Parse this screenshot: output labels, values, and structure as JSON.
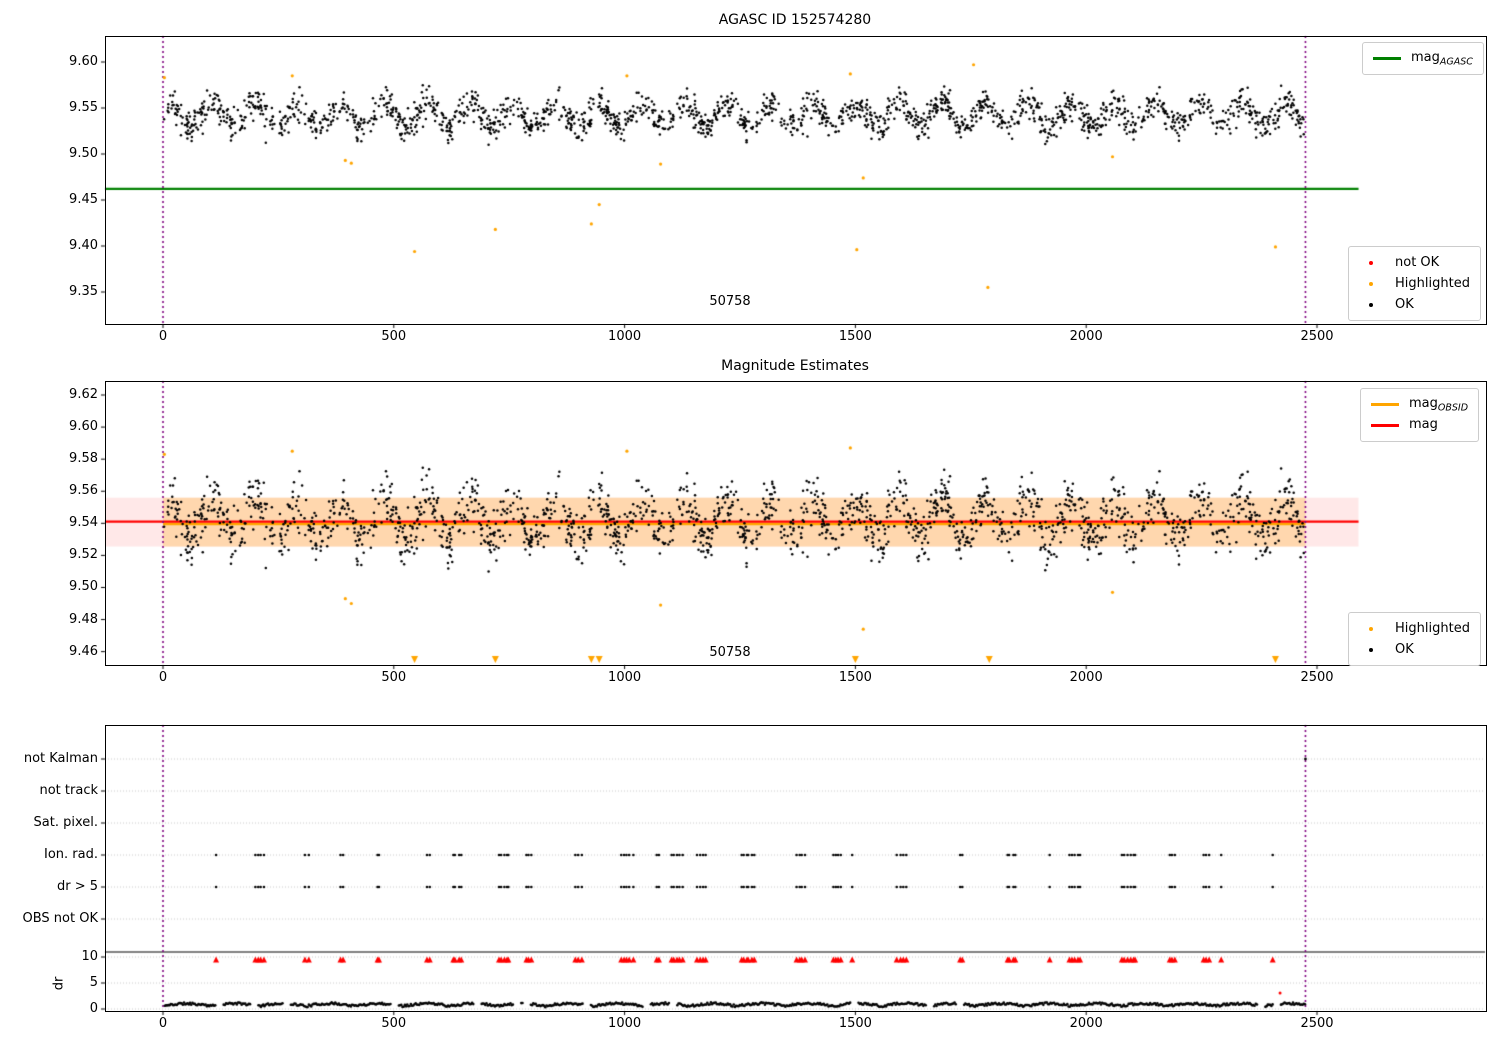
{
  "colors": {
    "vline": "#800080",
    "ok": "#000000",
    "highlight": "#ffa500",
    "not_ok": "#ff0000",
    "grid": "#c8c8c8",
    "band_red": "rgba(255,0,0,0.09)",
    "band_orange": "rgba(255,165,0,0.25)",
    "mag_agasc_green": "#008000"
  },
  "chart_data": [
    {
      "id": "mag-vs-agasc",
      "type": "scatter",
      "title": "AGASC ID 152574280",
      "xlim": [
        -126,
        2864
      ],
      "ylim": [
        9.316,
        9.628
      ],
      "xticks": [
        0,
        500,
        1000,
        1500,
        2000,
        2500
      ],
      "yticks": [
        9.35,
        9.4,
        9.45,
        9.5,
        9.55,
        9.6
      ],
      "grid": false,
      "legend_line": [
        {
          "label": "mag",
          "sub": "AGASC",
          "color": "#008000"
        }
      ],
      "legend_markers": [
        {
          "label": "not OK",
          "color": "#ff0000"
        },
        {
          "label": "Highlighted",
          "color": "#ffa500"
        },
        {
          "label": "OK",
          "color": "#000000"
        }
      ],
      "mag_agasc_value": 9.462,
      "mag_agasc_line_span": [
        -126,
        2590
      ],
      "obsid_vlines_x": [
        0,
        2475
      ],
      "obsid_annotation": {
        "text": "50758",
        "x": 1230,
        "y": 9.34
      },
      "highlighted_points": [
        [
          3,
          9.583
        ],
        [
          280,
          9.585
        ],
        [
          395,
          9.493
        ],
        [
          408,
          9.49
        ],
        [
          545,
          9.394
        ],
        [
          720,
          9.418
        ],
        [
          928,
          9.424
        ],
        [
          945,
          9.445
        ],
        [
          1005,
          9.585
        ],
        [
          1078,
          9.489
        ],
        [
          1489,
          9.587
        ],
        [
          1503,
          9.396
        ],
        [
          1517,
          9.474
        ],
        [
          1756,
          9.597
        ],
        [
          1787,
          9.355
        ],
        [
          2057,
          9.497
        ],
        [
          2410,
          9.399
        ]
      ],
      "not_ok_points": [],
      "ok_series": {
        "seed": 42,
        "n": 1900,
        "x_range": [
          2,
          2473
        ],
        "mean": 9.5425,
        "wave_amplitude": 0.0125,
        "wave_period": 93,
        "wave_phase": 0.6,
        "noise_sigma": 0.0082,
        "dip_probability": 0.02,
        "dip_depth": 0.013
      }
    },
    {
      "id": "magnitude-estimates",
      "type": "scatter",
      "title": "Magnitude Estimates",
      "xlim": [
        -126,
        2864
      ],
      "ylim": [
        9.452,
        9.63
      ],
      "xticks": [
        0,
        500,
        1000,
        1500,
        2000,
        2500
      ],
      "yticks": [
        9.46,
        9.48,
        9.5,
        9.52,
        9.54,
        9.56,
        9.58,
        9.6,
        9.62
      ],
      "grid": false,
      "legend_lines": [
        {
          "label": "mag",
          "sub": "OBSID",
          "color": "#ffa500"
        },
        {
          "label": "mag",
          "sub": "",
          "color": "#ff0000"
        }
      ],
      "legend_markers": [
        {
          "label": "Highlighted",
          "color": "#ffa500"
        },
        {
          "label": "OK",
          "color": "#000000"
        }
      ],
      "mag_value": 9.541,
      "mag_obsid_value": 9.5405,
      "mag_err_band": [
        9.5255,
        9.556
      ],
      "mag_line_span": [
        -126,
        2590
      ],
      "obsid_line_span": [
        0,
        2475
      ],
      "obsid_vlines_x": [
        0,
        2475
      ],
      "obsid_annotation": {
        "text": "50758",
        "x": 1230,
        "y": 9.458
      },
      "clipped_below_axis_x": [
        545,
        720,
        928,
        945,
        1500,
        1790,
        2410
      ],
      "highlighted_points": [
        [
          3,
          9.583
        ],
        [
          280,
          9.585
        ],
        [
          395,
          9.493
        ],
        [
          408,
          9.49
        ],
        [
          1005,
          9.585
        ],
        [
          1078,
          9.489
        ],
        [
          1489,
          9.587
        ],
        [
          1517,
          9.474
        ],
        [
          2057,
          9.497
        ]
      ]
    },
    {
      "id": "flags-and-dr",
      "type": "scatter",
      "categories": [
        "not Kalman",
        "not track",
        "Sat. pixel.",
        "Ion. rad.",
        "dr > 5",
        "OBS not OK"
      ],
      "dr_axis_label": "dr",
      "dr_ticks": [
        10,
        5,
        0
      ],
      "xticks": [
        0,
        500,
        1000,
        1500,
        2000,
        2500
      ],
      "grid": "dotted",
      "obsid_vlines_x": [
        0,
        2475
      ],
      "flagged_rows": [
        "Ion. rad.",
        "dr > 5"
      ],
      "flag_clusters": {
        "seed": 7,
        "x_start": 95,
        "x_end": 2455,
        "gap_min": 15,
        "gap_rand": 95,
        "cluster_max": 6,
        "step": 6
      },
      "flag_triangle_color": "#ff0000",
      "dr_series": {
        "seed": 11,
        "x_start": 4,
        "x_end": 2474,
        "x_step": 2.6,
        "base": 0.55,
        "amp": 0.5,
        "period": 33,
        "noise": 0.45,
        "gap_probability": 0.012,
        "gap_len": 5
      },
      "dr_outlier_point": {
        "x": 2420,
        "dr": 3.1,
        "color": "#ff0000"
      },
      "not_kalman_point_x": 2475
    }
  ]
}
